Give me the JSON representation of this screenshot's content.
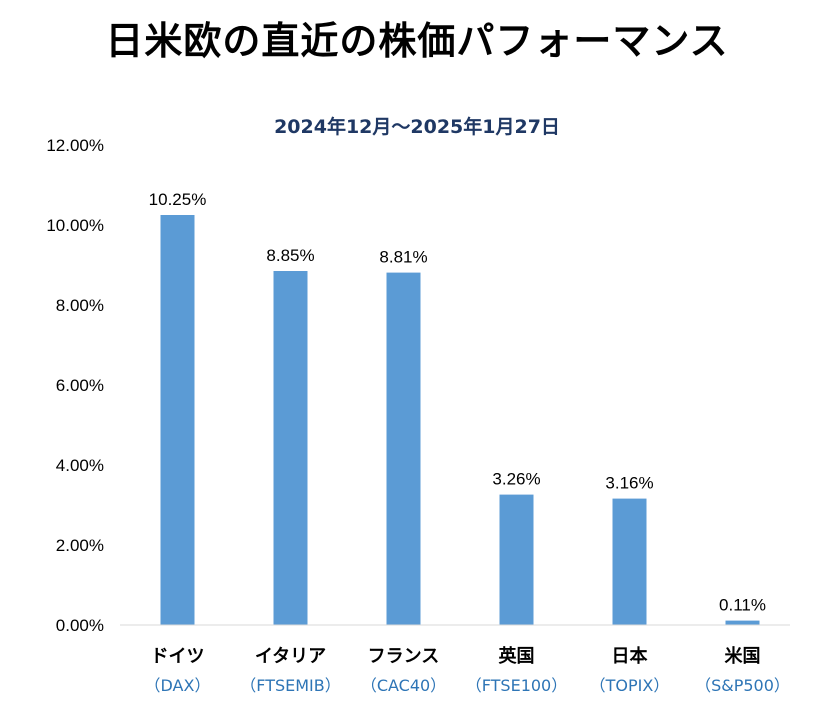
{
  "chart_data": {
    "type": "bar",
    "title": "日米欧の直近の株価パフォーマンス",
    "subtitle": "2024年12月～2025年1月27日",
    "categories": [
      "ドイツ",
      "イタリア",
      "フランス",
      "英国",
      "日本",
      "米国"
    ],
    "category_sublabels": [
      "（DAX）",
      "（FTSEMIB）",
      "（CAC40）",
      "（FTSE100）",
      "（TOPIX）",
      "（S&P500）"
    ],
    "values": [
      10.25,
      8.85,
      8.81,
      3.26,
      3.16,
      0.11
    ],
    "data_labels": [
      "10.25%",
      "8.85%",
      "8.81%",
      "3.26%",
      "3.16%",
      "0.11%"
    ],
    "ylim": [
      0,
      12
    ],
    "yticks": [
      0,
      2,
      4,
      6,
      8,
      10,
      12
    ],
    "ytick_labels": [
      "0.00%",
      "2.00%",
      "4.00%",
      "6.00%",
      "8.00%",
      "10.00%",
      "12.00%"
    ],
    "xlabel": "",
    "ylabel": "",
    "grid": false,
    "bar_color": "#5b9bd5",
    "sublabel_color": "#2e75b6",
    "subtitle_color": "#1f3864"
  }
}
